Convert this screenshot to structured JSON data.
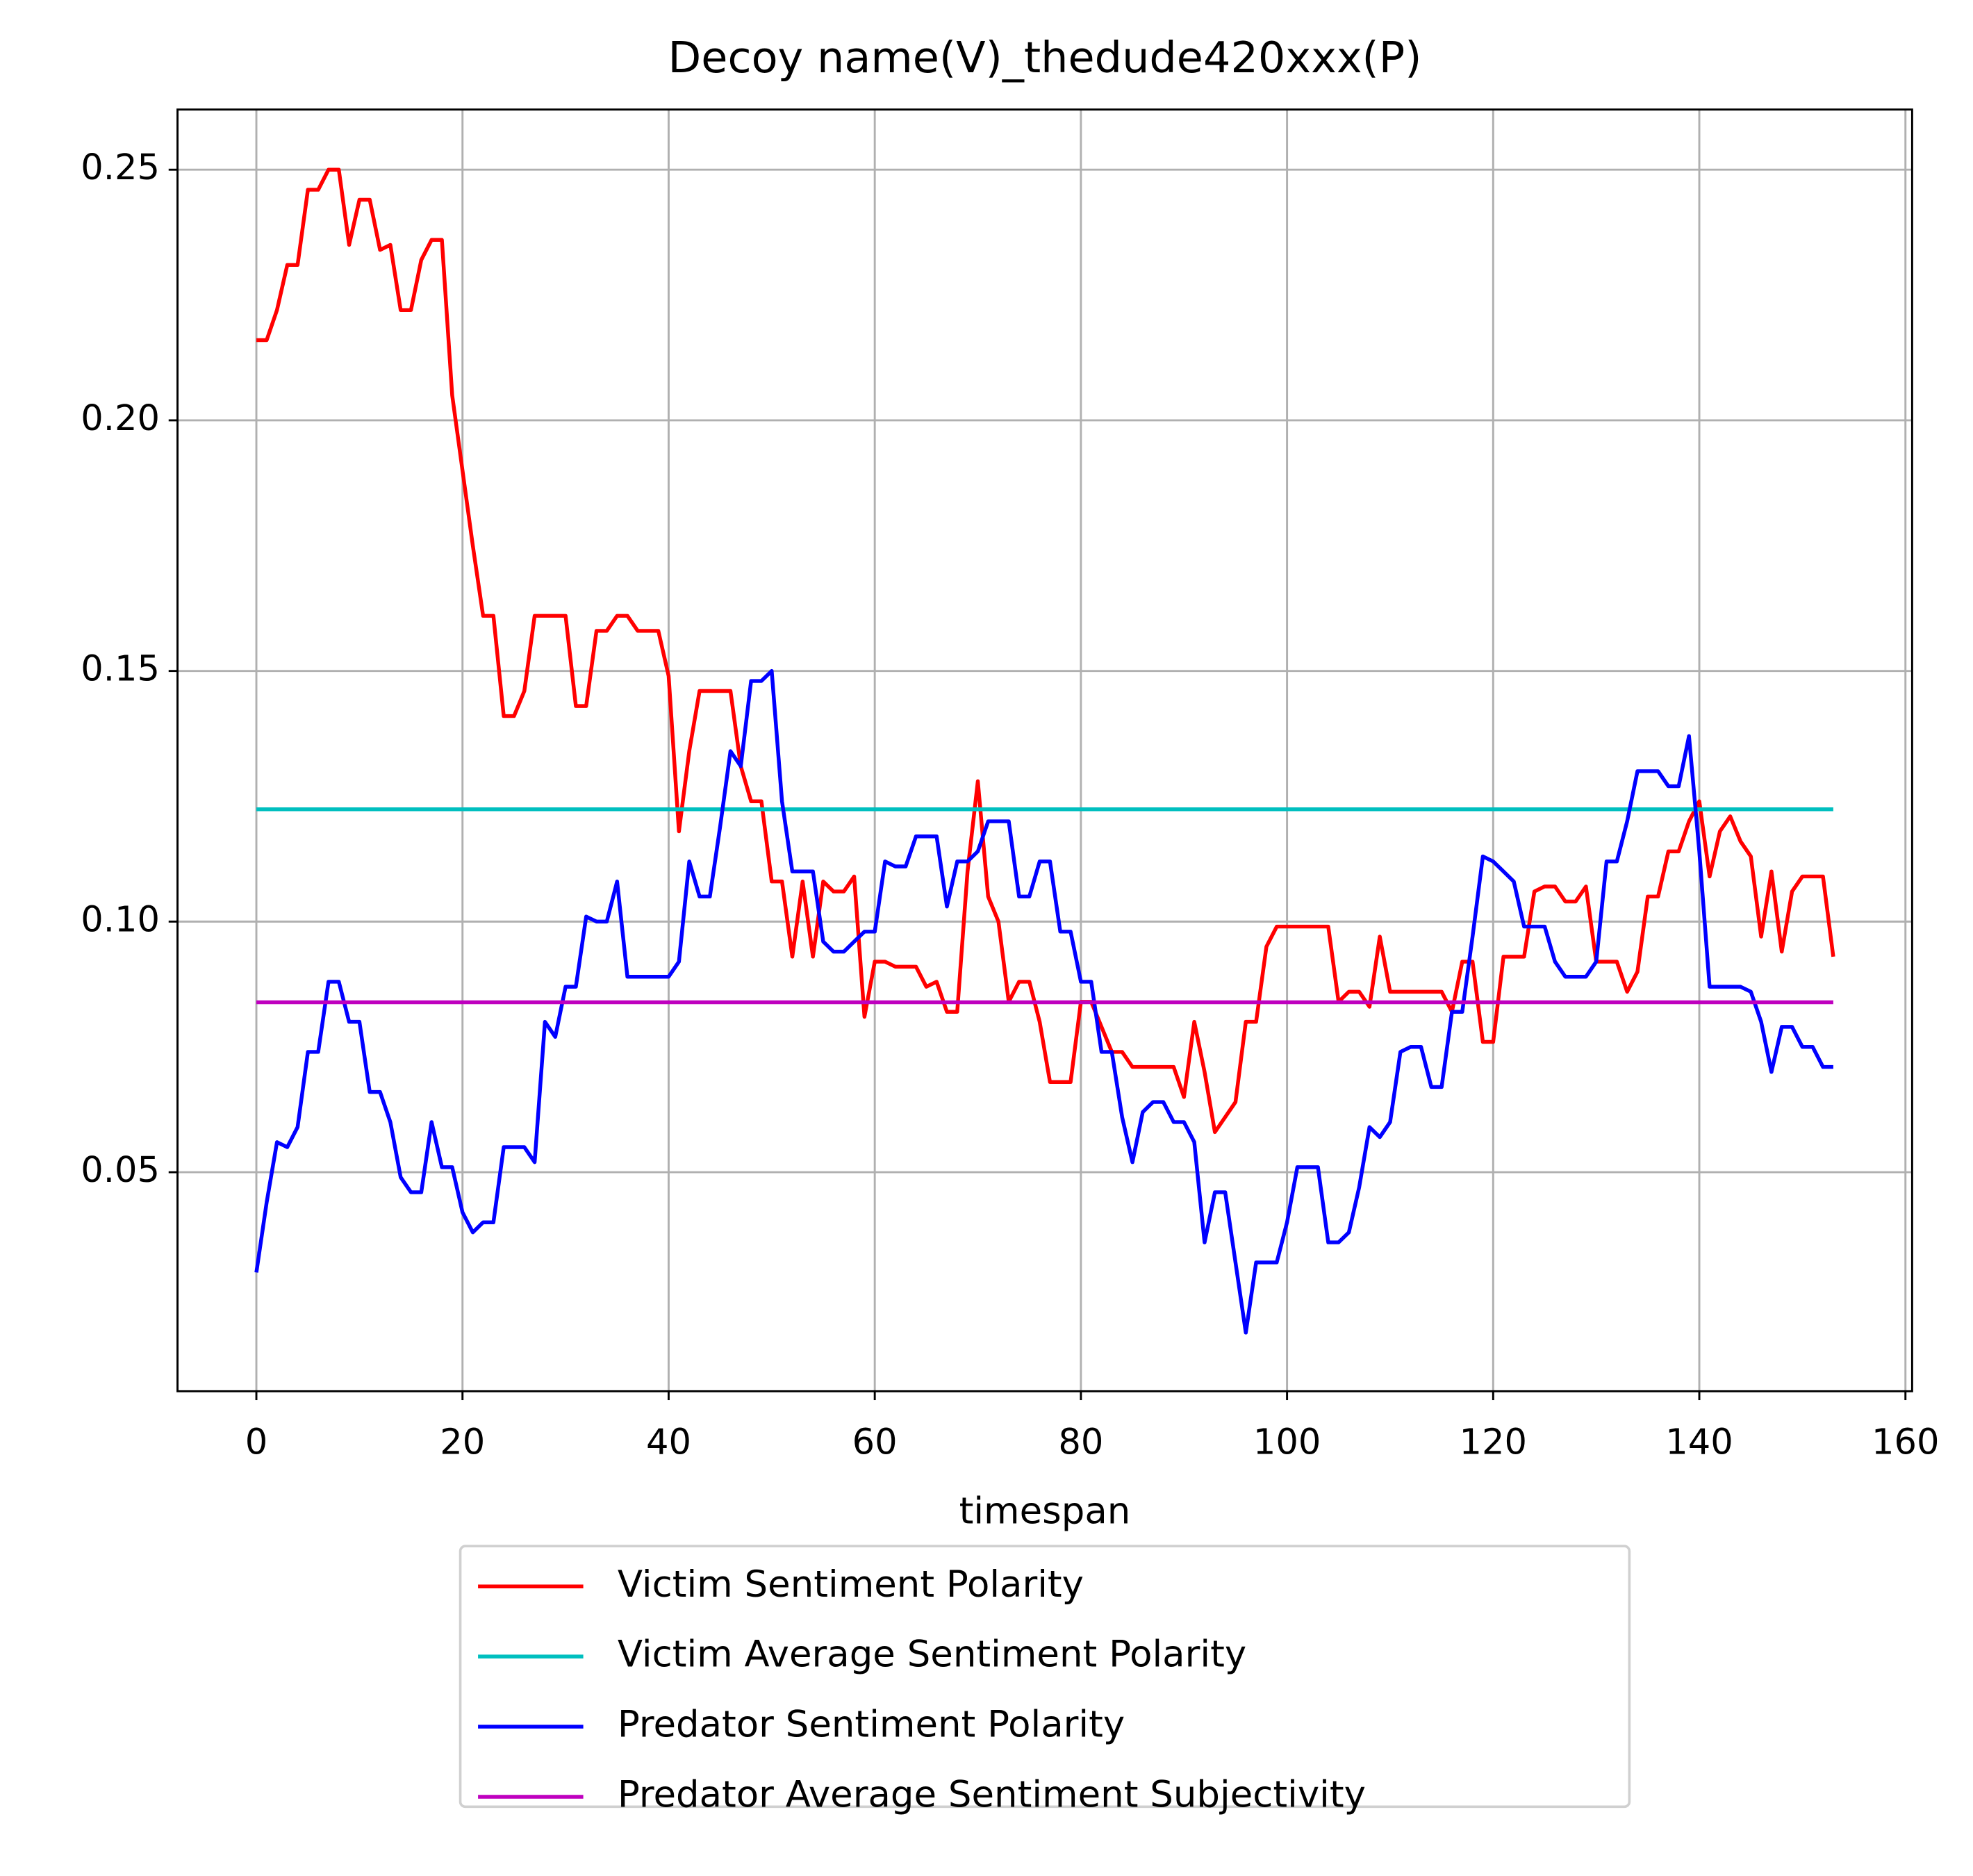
{
  "chart_data": {
    "type": "line",
    "title": "Decoy name(V)_thedude420xxx(P)",
    "x_label": "timespan",
    "x": [
      0,
      1,
      2,
      3,
      4,
      5,
      6,
      7,
      8,
      9,
      10,
      11,
      12,
      13,
      14,
      15,
      16,
      17,
      18,
      19,
      20,
      21,
      22,
      23,
      24,
      25,
      26,
      27,
      28,
      29,
      30,
      31,
      32,
      33,
      34,
      35,
      36,
      37,
      38,
      39,
      40,
      41,
      42,
      43,
      44,
      45,
      46,
      47,
      48,
      49,
      50,
      51,
      52,
      53,
      54,
      55,
      56,
      57,
      58,
      59,
      60,
      61,
      62,
      63,
      64,
      65,
      66,
      67,
      68,
      69,
      70,
      71,
      72,
      73,
      74,
      75,
      76,
      77,
      78,
      79,
      80,
      81,
      82,
      83,
      84,
      85,
      86,
      87,
      88,
      89,
      90,
      91,
      92,
      93,
      94,
      95,
      96,
      97,
      98,
      99,
      100,
      101,
      102,
      103,
      104,
      105,
      106,
      107,
      108,
      109,
      110,
      111,
      112,
      113,
      114,
      115,
      116,
      117,
      118,
      119,
      120,
      121,
      122,
      123,
      124,
      125,
      126,
      127,
      128,
      129,
      130,
      131,
      132,
      133,
      134,
      135,
      136,
      137,
      138,
      139,
      140,
      141,
      142,
      143,
      144,
      145,
      146,
      147,
      148,
      149,
      150,
      151,
      152,
      153
    ],
    "series": [
      {
        "name": "Victim Sentiment Polarity",
        "color": "#ff0000",
        "values": [
          0.216,
          0.216,
          0.222,
          0.231,
          0.231,
          0.246,
          0.246,
          0.25,
          0.25,
          0.235,
          0.244,
          0.244,
          0.234,
          0.235,
          0.222,
          0.222,
          0.232,
          0.236,
          0.236,
          0.205,
          0.19,
          0.175,
          0.161,
          0.161,
          0.141,
          0.141,
          0.146,
          0.161,
          0.161,
          0.161,
          0.161,
          0.143,
          0.143,
          0.158,
          0.158,
          0.161,
          0.161,
          0.158,
          0.158,
          0.158,
          0.149,
          0.118,
          0.134,
          0.146,
          0.146,
          0.146,
          0.146,
          0.131,
          0.124,
          0.124,
          0.108,
          0.108,
          0.093,
          0.108,
          0.093,
          0.108,
          0.106,
          0.106,
          0.109,
          0.081,
          0.092,
          0.092,
          0.091,
          0.091,
          0.091,
          0.087,
          0.088,
          0.082,
          0.082,
          0.11,
          0.128,
          0.105,
          0.1,
          0.084,
          0.088,
          0.088,
          0.08,
          0.068,
          0.068,
          0.068,
          0.084,
          0.084,
          0.079,
          0.074,
          0.074,
          0.071,
          0.071,
          0.071,
          0.071,
          0.071,
          0.065,
          0.08,
          0.07,
          0.058,
          0.061,
          0.064,
          0.08,
          0.08,
          0.095,
          0.099,
          0.099,
          0.099,
          0.099,
          0.099,
          0.099,
          0.084,
          0.086,
          0.086,
          0.083,
          0.097,
          0.086,
          0.086,
          0.086,
          0.086,
          0.086,
          0.086,
          0.082,
          0.092,
          0.092,
          0.076,
          0.076,
          0.093,
          0.093,
          0.093,
          0.106,
          0.107,
          0.107,
          0.104,
          0.104,
          0.107,
          0.092,
          0.092,
          0.092,
          0.086,
          0.09,
          0.105,
          0.105,
          0.114,
          0.114,
          0.12,
          0.124,
          0.109,
          0.118,
          0.121,
          0.116,
          0.113,
          0.097,
          0.11,
          0.094,
          0.106,
          0.109,
          0.109,
          0.109,
          0.093
        ]
      },
      {
        "name": "Victim Average Sentiment Polarity",
        "color": "#00bfbf",
        "value": 0.1224
      },
      {
        "name": "Predator Sentiment Polarity",
        "color": "#0000ff",
        "values": [
          0.03,
          0.044,
          0.056,
          0.055,
          0.059,
          0.074,
          0.074,
          0.088,
          0.088,
          0.08,
          0.08,
          0.066,
          0.066,
          0.06,
          0.049,
          0.046,
          0.046,
          0.06,
          0.051,
          0.051,
          0.042,
          0.038,
          0.04,
          0.04,
          0.055,
          0.055,
          0.055,
          0.052,
          0.08,
          0.077,
          0.087,
          0.087,
          0.101,
          0.1,
          0.1,
          0.108,
          0.089,
          0.089,
          0.089,
          0.089,
          0.089,
          0.092,
          0.112,
          0.105,
          0.105,
          0.119,
          0.134,
          0.131,
          0.148,
          0.148,
          0.15,
          0.124,
          0.11,
          0.11,
          0.11,
          0.096,
          0.094,
          0.094,
          0.096,
          0.098,
          0.098,
          0.112,
          0.111,
          0.111,
          0.117,
          0.117,
          0.117,
          0.103,
          0.112,
          0.112,
          0.114,
          0.12,
          0.12,
          0.12,
          0.105,
          0.105,
          0.112,
          0.112,
          0.098,
          0.098,
          0.088,
          0.088,
          0.074,
          0.074,
          0.061,
          0.052,
          0.062,
          0.064,
          0.064,
          0.06,
          0.06,
          0.056,
          0.036,
          0.046,
          0.046,
          0.032,
          0.018,
          0.032,
          0.032,
          0.032,
          0.04,
          0.051,
          0.051,
          0.051,
          0.036,
          0.036,
          0.038,
          0.047,
          0.059,
          0.057,
          0.06,
          0.074,
          0.075,
          0.075,
          0.067,
          0.067,
          0.082,
          0.082,
          0.097,
          0.113,
          0.112,
          0.11,
          0.108,
          0.099,
          0.099,
          0.099,
          0.092,
          0.089,
          0.089,
          0.089,
          0.092,
          0.112,
          0.112,
          0.12,
          0.13,
          0.13,
          0.13,
          0.127,
          0.127,
          0.137,
          0.114,
          0.087,
          0.087,
          0.087,
          0.087,
          0.086,
          0.08,
          0.07,
          0.079,
          0.079,
          0.075,
          0.075,
          0.071,
          0.071
        ]
      },
      {
        "name": "Predator Average Sentiment Subjectivity",
        "color": "#bf00bf",
        "value": 0.0839
      }
    ],
    "xlim": [
      -7.65,
      160.65
    ],
    "xticks": [
      0,
      20,
      40,
      60,
      80,
      100,
      120,
      140,
      160
    ],
    "ylim": [
      0.0063,
      0.262
    ],
    "yticks": [
      0.05,
      {
        "value": 0.1,
        "label": "0.10"
      },
      0.15,
      {
        "value": 0.2,
        "label": "0.20"
      },
      0.25
    ],
    "grid": true,
    "legend": "below"
  }
}
